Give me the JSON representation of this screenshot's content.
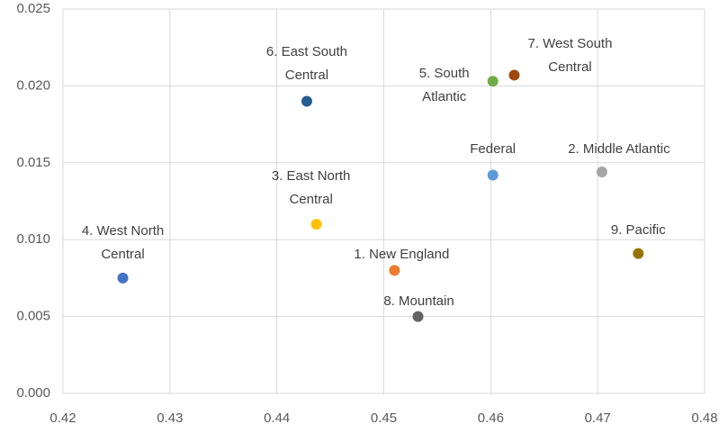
{
  "chart_data": {
    "type": "scatter",
    "series": [
      {
        "name": "1. New England",
        "color": "#ed7d31",
        "x": [
          0.451
        ],
        "values": [
          0.008
        ]
      },
      {
        "name": "2. Middle Atlantic",
        "color": "#a5a5a5",
        "x": [
          0.4704
        ],
        "values": [
          0.0144
        ]
      },
      {
        "name": "3. East North Central",
        "color": "#ffc000",
        "x": [
          0.4437
        ],
        "values": [
          0.011
        ]
      },
      {
        "name": "4. West North Central",
        "color": "#4472c4",
        "x": [
          0.4256
        ],
        "values": [
          0.0075
        ]
      },
      {
        "name": "5. South Atlantic",
        "color": "#70ad47",
        "x": [
          0.4602
        ],
        "values": [
          0.0203
        ]
      },
      {
        "name": "6. East South Central",
        "color": "#255e91",
        "x": [
          0.4428
        ],
        "values": [
          0.019
        ]
      },
      {
        "name": "7. West South Central",
        "color": "#9e480e",
        "x": [
          0.4622
        ],
        "values": [
          0.0207
        ]
      },
      {
        "name": "8. Mountain",
        "color": "#636363",
        "x": [
          0.4532
        ],
        "values": [
          0.005
        ]
      },
      {
        "name": "9. Pacific",
        "color": "#997300",
        "x": [
          0.4738
        ],
        "values": [
          0.0091
        ]
      },
      {
        "name": "Federal",
        "color": "#5b9bd5",
        "x": [
          0.4602
        ],
        "values": [
          0.0142
        ]
      }
    ],
    "xlim": [
      0.42,
      0.48
    ],
    "xticks": [
      0.42,
      0.43,
      0.44,
      0.45,
      0.46,
      0.47,
      0.48
    ],
    "ylim": [
      0,
      0.025
    ],
    "yticks": [
      {
        "value": 0,
        "label": "0.000"
      },
      {
        "value": 0.005,
        "label": "0.005"
      },
      {
        "value": 0.01,
        "label": "0.010"
      },
      {
        "value": 0.015,
        "label": "0.015"
      },
      {
        "value": 0.02,
        "label": "0.020"
      },
      {
        "value": 0.025,
        "label": "0.025"
      }
    ],
    "grid": true
  }
}
